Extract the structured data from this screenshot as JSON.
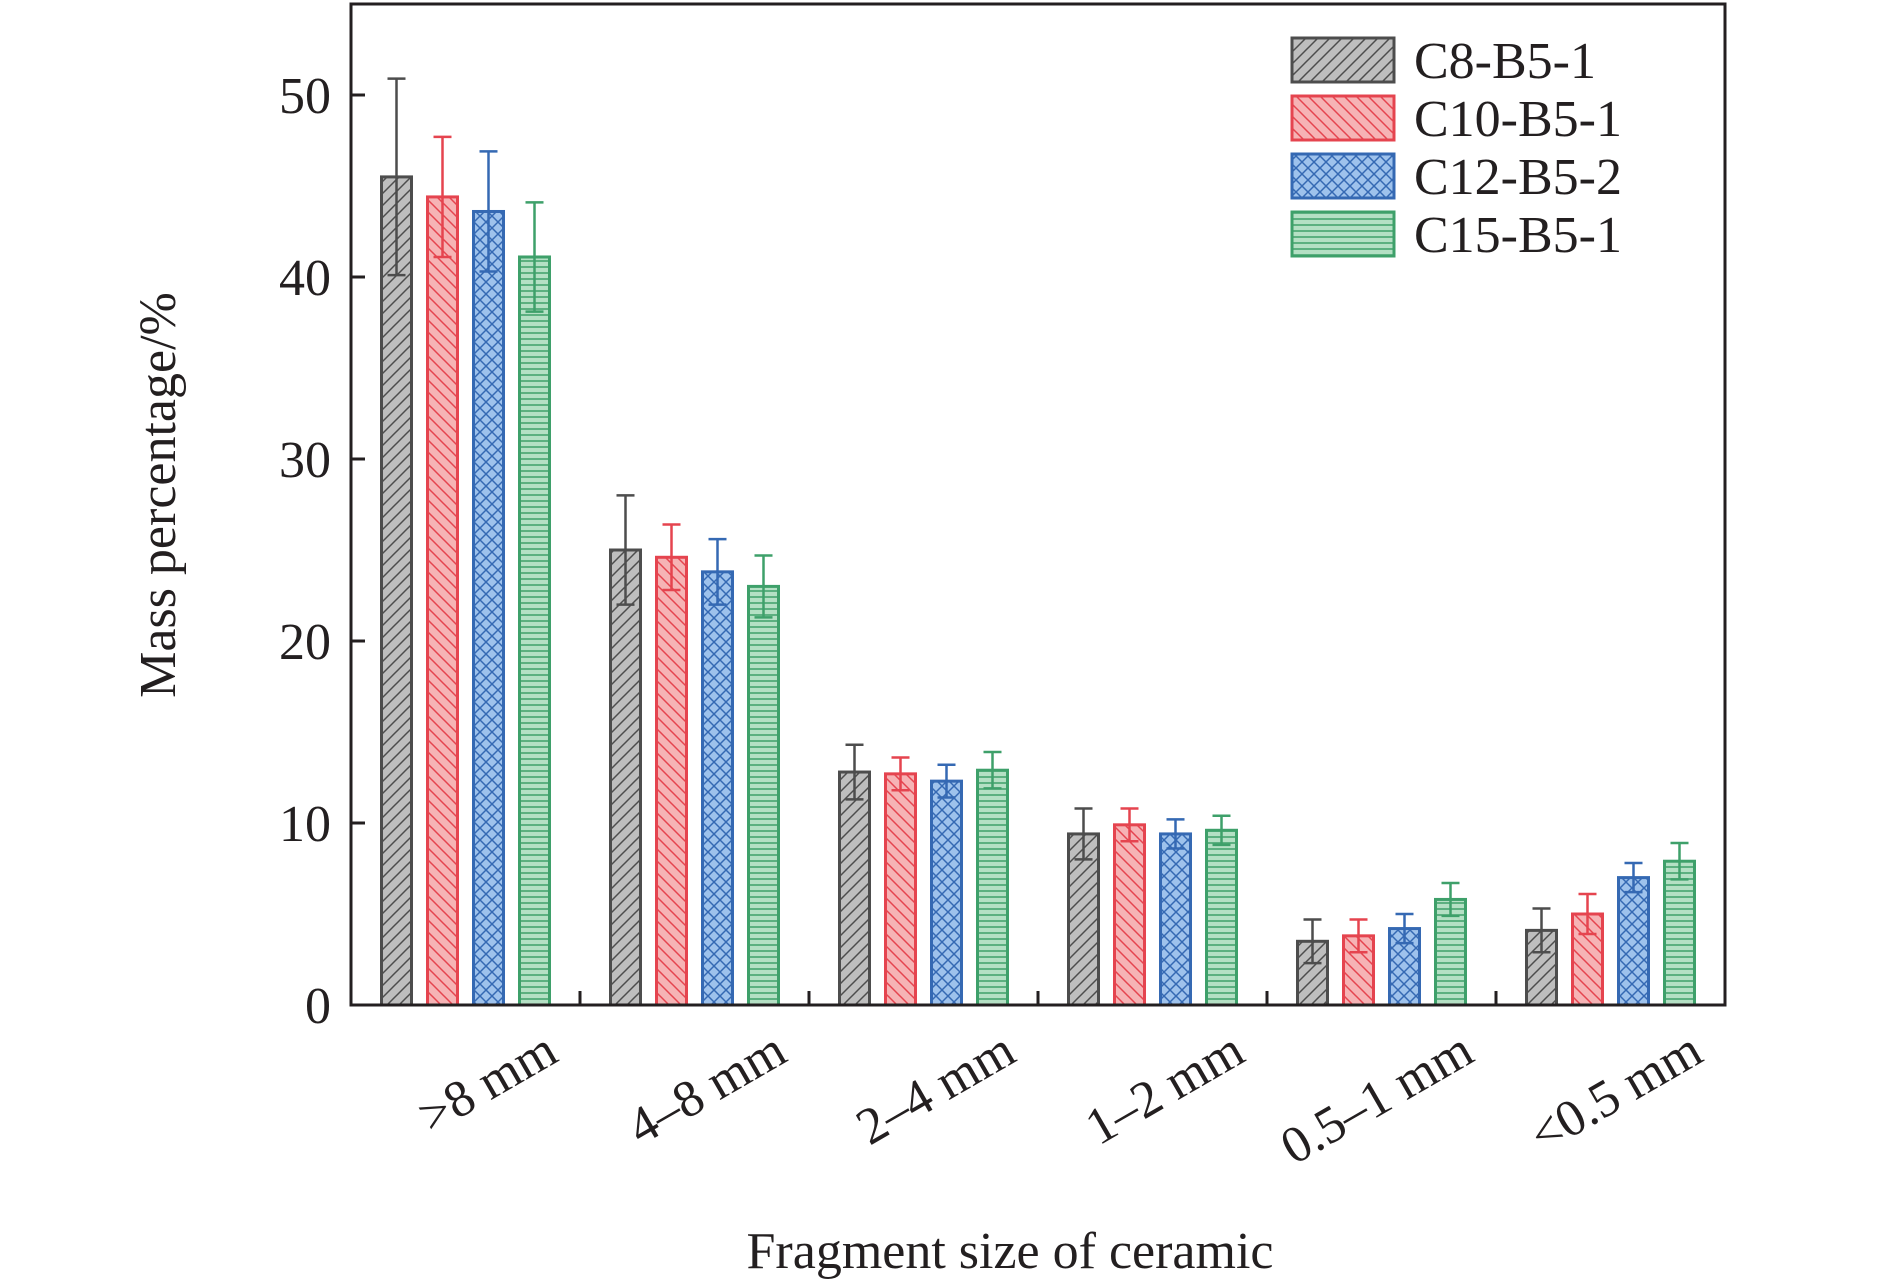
{
  "chart_data": {
    "type": "bar",
    "title": "",
    "xlabel": "Fragment size of ceramic",
    "ylabel": "Mass percentage/%",
    "ylim": [
      0,
      55
    ],
    "yticks": [
      0,
      10,
      20,
      30,
      40,
      50
    ],
    "categories": [
      ">8 mm",
      "4–8 mm",
      "2–4 mm",
      "1–2 mm",
      "0.5–1 mm",
      "<0.5 mm"
    ],
    "grid": false,
    "legend_position": "top-right",
    "series": [
      {
        "name": "C8-B5-1",
        "color": "#4d4d4d",
        "fill": "#bebebe",
        "pattern": "diagonal",
        "values": [
          45.5,
          25.0,
          12.8,
          9.4,
          3.5,
          4.1
        ],
        "errors": [
          5.4,
          3.0,
          1.5,
          1.4,
          1.2,
          1.2
        ]
      },
      {
        "name": "C10-B5-1",
        "color": "#e5444f",
        "fill": "#f6b3b5",
        "pattern": "back-diagonal",
        "values": [
          44.4,
          24.6,
          12.7,
          9.9,
          3.8,
          5.0
        ],
        "errors": [
          3.3,
          1.8,
          0.9,
          0.9,
          0.9,
          1.1
        ]
      },
      {
        "name": "C12-B5-2",
        "color": "#3569b3",
        "fill": "#9ec2ec",
        "pattern": "crosshatch",
        "values": [
          43.6,
          23.8,
          12.3,
          9.4,
          4.2,
          7.0
        ],
        "errors": [
          3.3,
          1.8,
          0.9,
          0.8,
          0.8,
          0.8
        ]
      },
      {
        "name": "C15-B5-1",
        "color": "#3ea06a",
        "fill": "#b4e0c4",
        "pattern": "horizontal",
        "values": [
          41.1,
          23.0,
          12.9,
          9.6,
          5.8,
          7.9
        ],
        "errors": [
          3.0,
          1.7,
          1.0,
          0.8,
          0.9,
          1.0
        ]
      }
    ]
  }
}
